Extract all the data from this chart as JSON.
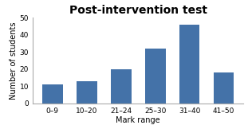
{
  "title": "Post-intervention test",
  "xlabel": "Mark range",
  "ylabel": "Number of students",
  "categories": [
    "0–9",
    "10–20",
    "21–24",
    "25–30",
    "31–40",
    "41–50"
  ],
  "values": [
    11,
    13,
    20,
    32,
    46,
    18
  ],
  "bar_color": "#4472a8",
  "ylim": [
    0,
    50
  ],
  "yticks": [
    0,
    10,
    20,
    30,
    40,
    50
  ],
  "background_color": "#ffffff",
  "title_fontsize": 10,
  "label_fontsize": 7,
  "tick_fontsize": 6.5
}
